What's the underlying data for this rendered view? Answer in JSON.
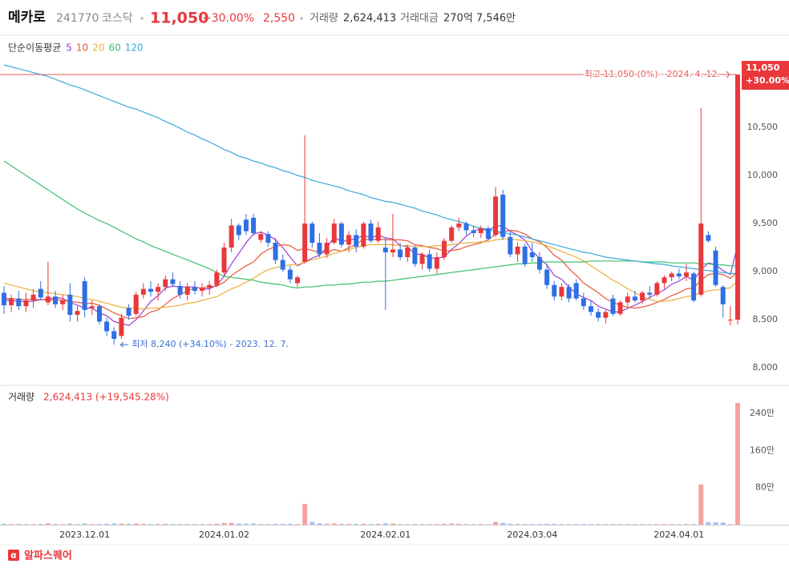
{
  "header": {
    "name": "메카로",
    "code": "241770",
    "market": "코스닥",
    "price": "11,050",
    "change_pct": "+30.00%",
    "change": "2,550",
    "volume_label": "거래량",
    "volume": "2,624,413",
    "amount_label": "거래대금",
    "amount": "270억 7,546만"
  },
  "chart_data": {
    "type": "candlestick",
    "categories": [
      null,
      null,
      null,
      null,
      null,
      null,
      null,
      null,
      null,
      null,
      null,
      "2023.12.01",
      null,
      null,
      null,
      null,
      null,
      null,
      null,
      null,
      null,
      null,
      null,
      null,
      null,
      null,
      null,
      null,
      null,
      null,
      "2024.01.02",
      null,
      null,
      null,
      null,
      null,
      null,
      null,
      null,
      null,
      null,
      null,
      null,
      null,
      null,
      null,
      null,
      null,
      null,
      null,
      null,
      null,
      "2024.02.01",
      null,
      null,
      null,
      null,
      null,
      null,
      null,
      null,
      null,
      null,
      null,
      null,
      null,
      null,
      null,
      null,
      null,
      null,
      null,
      "2024.03.04",
      null,
      null,
      null,
      null,
      null,
      null,
      null,
      null,
      null,
      null,
      null,
      null,
      null,
      null,
      null,
      null,
      null,
      null,
      null,
      "2024.04.01",
      null,
      null,
      null,
      null,
      null,
      null,
      null,
      null
    ],
    "open": [
      8780,
      8650,
      8720,
      8640,
      8700,
      8820,
      8680,
      8740,
      8660,
      8760,
      8550,
      8900,
      8620,
      8640,
      8480,
      8380,
      8330,
      8620,
      8560,
      8760,
      8820,
      8790,
      8840,
      8920,
      8850,
      8760,
      8840,
      8800,
      8830,
      8860,
      8990,
      9250,
      9480,
      9540,
      9560,
      9330,
      9390,
      9300,
      9120,
      9020,
      8880,
      9100,
      9500,
      9300,
      9180,
      9300,
      9500,
      9280,
      9380,
      9260,
      9500,
      9320,
      9250,
      9200,
      9230,
      9150,
      9250,
      9080,
      9180,
      9030,
      9150,
      9320,
      9460,
      9500,
      9430,
      9400,
      9450,
      9380,
      9800,
      9360,
      9180,
      9260,
      9200,
      9150,
      9020,
      8860,
      8740,
      8840,
      8880,
      8720,
      8640,
      8580,
      8520,
      8720,
      8560,
      8680,
      8740,
      8700,
      8780,
      8760,
      8880,
      8940,
      8980,
      8950,
      8980,
      8760,
      9380,
      9220,
      8840,
      8500,
      8500
    ],
    "high": [
      8850,
      8760,
      8800,
      8780,
      8820,
      8900,
      9100,
      8800,
      8760,
      8880,
      8640,
      8940,
      8700,
      8660,
      8520,
      8420,
      8560,
      8660,
      8790,
      8880,
      8900,
      8880,
      8960,
      8990,
      8900,
      8880,
      8900,
      8880,
      8900,
      9020,
      9300,
      9550,
      9500,
      9600,
      9600,
      9420,
      9420,
      9350,
      9180,
      9060,
      8960,
      10420,
      9520,
      9400,
      9350,
      9550,
      9520,
      9420,
      9440,
      9520,
      9540,
      9520,
      9350,
      9600,
      9300,
      9280,
      9270,
      9200,
      9230,
      9200,
      9350,
      9480,
      9560,
      9520,
      9480,
      9480,
      9470,
      9880,
      9850,
      9420,
      9300,
      9290,
      9300,
      9200,
      9080,
      8900,
      8880,
      8870,
      8920,
      8780,
      8700,
      8620,
      8600,
      8760,
      8700,
      8780,
      8800,
      8800,
      8850,
      8900,
      8960,
      9000,
      9030,
      9080,
      9000,
      10700,
      9420,
      9260,
      8860,
      8640,
      11050
    ],
    "low": [
      8560,
      8580,
      8600,
      8580,
      8620,
      8700,
      8650,
      8620,
      8600,
      8480,
      8480,
      8520,
      8550,
      8450,
      8330,
      8240,
      8300,
      8500,
      8540,
      8720,
      8740,
      8700,
      8800,
      8840,
      8720,
      8700,
      8760,
      8740,
      8760,
      8840,
      8960,
      9200,
      9330,
      9380,
      9380,
      9300,
      9260,
      9080,
      9000,
      8880,
      8840,
      9080,
      9250,
      9150,
      9140,
      9280,
      9250,
      9200,
      9200,
      9240,
      9300,
      9300,
      8600,
      9150,
      9120,
      9100,
      9050,
      9020,
      9000,
      8980,
      9120,
      9300,
      9420,
      9380,
      9360,
      9350,
      9320,
      9360,
      9330,
      9150,
      9100,
      9050,
      9100,
      8980,
      8820,
      8700,
      8700,
      8680,
      8700,
      8600,
      8540,
      8480,
      8460,
      8540,
      8540,
      8640,
      8680,
      8660,
      8720,
      8740,
      8820,
      8900,
      8920,
      8900,
      8680,
      8740,
      9300,
      8840,
      8520,
      8440,
      8450
    ],
    "close": [
      8650,
      8720,
      8640,
      8700,
      8760,
      8730,
      8740,
      8660,
      8700,
      8550,
      8590,
      8600,
      8640,
      8480,
      8380,
      8300,
      8520,
      8540,
      8760,
      8820,
      8790,
      8840,
      8920,
      8870,
      8760,
      8840,
      8800,
      8830,
      8860,
      8990,
      9250,
      9480,
      9380,
      9420,
      9400,
      9390,
      9300,
      9120,
      9020,
      8920,
      8940,
      9500,
      9300,
      9180,
      9300,
      9500,
      9280,
      9380,
      9260,
      9500,
      9320,
      9460,
      9200,
      9230,
      9150,
      9250,
      9080,
      9180,
      9030,
      9150,
      9320,
      9460,
      9500,
      9430,
      9400,
      9450,
      9340,
      9780,
      9360,
      9180,
      9260,
      9080,
      9150,
      9020,
      8860,
      8740,
      8840,
      8720,
      8720,
      8640,
      8580,
      8520,
      8580,
      8560,
      8680,
      8740,
      8700,
      8780,
      8760,
      8880,
      8940,
      8980,
      8950,
      8990,
      8700,
      9500,
      9320,
      8860,
      8660,
      8500,
      11050
    ],
    "up_color": "#e8383b",
    "down_color": "#2f6fe4",
    "ylim": [
      7825,
      11225
    ],
    "yticks": [
      {
        "value": 8000,
        "label": "8,000"
      },
      {
        "value": 8500,
        "label": "8,500"
      },
      {
        "value": 9000,
        "label": "9,000"
      },
      {
        "value": 9500,
        "label": "9,500"
      },
      {
        "value": 10000,
        "label": "10,000"
      },
      {
        "value": 10500,
        "label": "10,500"
      }
    ],
    "grid": false,
    "last_price": {
      "value": 11050,
      "label": "11,050",
      "change": "+30.00%"
    },
    "high_note": {
      "value": 11050,
      "label": "최고 11,050 (0%) - 2024. 4. 12."
    },
    "low_note": {
      "value": 8240,
      "label": "최저 8,240 (+34.10%) - 2023. 12. 7."
    },
    "ma_title": "단순이동평균",
    "moving_averages": [
      {
        "name": "5",
        "color": "#9b3ccf",
        "values": [
          8700,
          8700,
          8690,
          8690,
          8690,
          8710,
          8710,
          8730,
          8720,
          8680,
          8650,
          8620,
          8620,
          8570,
          8540,
          8480,
          8460,
          8440,
          8500,
          8590,
          8690,
          8750,
          8830,
          8850,
          8840,
          8840,
          8840,
          8820,
          8820,
          8860,
          8950,
          9080,
          9190,
          9300,
          9390,
          9410,
          9380,
          9330,
          9250,
          9150,
          9060,
          9100,
          9140,
          9170,
          9250,
          9360,
          9310,
          9330,
          9340,
          9380,
          9350,
          9380,
          9350,
          9340,
          9270,
          9260,
          9180,
          9180,
          9140,
          9140,
          9150,
          9230,
          9290,
          9370,
          9420,
          9450,
          9420,
          9480,
          9470,
          9420,
          9380,
          9330,
          9210,
          9140,
          9070,
          8960,
          8920,
          8840,
          8770,
          8730,
          8700,
          8640,
          8610,
          8580,
          8580,
          8620,
          8650,
          8690,
          8730,
          8770,
          8810,
          8870,
          8900,
          8950,
          8910,
          9020,
          9090,
          9070,
          9010,
          8970,
          9280
        ]
      },
      {
        "name": "10",
        "color": "#e8573a",
        "values": [
          8720,
          8720,
          8710,
          8710,
          8710,
          8710,
          8700,
          8710,
          8700,
          8690,
          8680,
          8670,
          8670,
          8650,
          8610,
          8570,
          8540,
          8510,
          8520,
          8530,
          8580,
          8600,
          8660,
          8720,
          8760,
          8800,
          8830,
          8830,
          8840,
          8850,
          8890,
          8960,
          9010,
          9060,
          9100,
          9180,
          9230,
          9260,
          9280,
          9270,
          9220,
          9240,
          9220,
          9200,
          9200,
          9230,
          9210,
          9250,
          9280,
          9340,
          9330,
          9340,
          9330,
          9330,
          9330,
          9320,
          9280,
          9270,
          9250,
          9240,
          9210,
          9220,
          9230,
          9260,
          9280,
          9300,
          9330,
          9390,
          9410,
          9430,
          9420,
          9390,
          9340,
          9310,
          9250,
          9170,
          9120,
          9030,
          8960,
          8880,
          8830,
          8780,
          8720,
          8680,
          8650,
          8630,
          8620,
          8630,
          8650,
          8680,
          8710,
          8750,
          8780,
          8820,
          8830,
          8910,
          8970,
          8980,
          8970,
          8930,
          9000
        ]
      },
      {
        "name": "20",
        "color": "#e8b13a",
        "values": [
          8880,
          8860,
          8840,
          8820,
          8800,
          8790,
          8780,
          8770,
          8760,
          8750,
          8740,
          8720,
          8710,
          8690,
          8670,
          8650,
          8630,
          8620,
          8620,
          8610,
          8620,
          8620,
          8630,
          8640,
          8650,
          8670,
          8680,
          8700,
          8720,
          8740,
          8780,
          8820,
          8850,
          8890,
          8930,
          8980,
          9020,
          9040,
          9060,
          9070,
          9070,
          9100,
          9120,
          9140,
          9160,
          9190,
          9210,
          9230,
          9250,
          9270,
          9280,
          9280,
          9280,
          9280,
          9270,
          9270,
          9260,
          9260,
          9260,
          9270,
          9270,
          9280,
          9290,
          9300,
          9300,
          9310,
          9310,
          9330,
          9340,
          9340,
          9330,
          9320,
          9310,
          9290,
          9270,
          9240,
          9210,
          9180,
          9150,
          9110,
          9060,
          9010,
          8960,
          8910,
          8870,
          8820,
          8780,
          8740,
          8710,
          8690,
          8690,
          8700,
          8720,
          8740,
          8750,
          8780,
          8800,
          8810,
          8820,
          8830,
          8910
        ]
      },
      {
        "name": "60",
        "color": "#3cbf6e",
        "values": [
          10150,
          10100,
          10050,
          10000,
          9950,
          9900,
          9850,
          9800,
          9750,
          9700,
          9650,
          9610,
          9570,
          9530,
          9500,
          9460,
          9420,
          9380,
          9340,
          9310,
          9270,
          9240,
          9210,
          9180,
          9150,
          9120,
          9090,
          9060,
          9030,
          8990,
          8950,
          8940,
          8930,
          8920,
          8910,
          8890,
          8880,
          8870,
          8860,
          8840,
          8830,
          8840,
          8840,
          8850,
          8860,
          8860,
          8870,
          8870,
          8880,
          8890,
          8890,
          8900,
          8900,
          8910,
          8920,
          8930,
          8940,
          8950,
          8960,
          8970,
          8980,
          8990,
          9000,
          9010,
          9020,
          9030,
          9040,
          9050,
          9060,
          9070,
          9080,
          9080,
          9090,
          9090,
          9100,
          9100,
          9100,
          9100,
          9100,
          9100,
          9110,
          9110,
          9110,
          9110,
          9110,
          9110,
          9110,
          9100,
          9100,
          9100,
          9100,
          9090,
          9090,
          9090,
          9090,
          9080,
          9080,
          9070,
          9070,
          9060,
          9060
        ]
      },
      {
        "name": "120",
        "color": "#3aa8d8",
        "values": [
          11150,
          11130,
          11110,
          11090,
          11070,
          11050,
          11030,
          11000,
          10970,
          10940,
          10920,
          10890,
          10860,
          10830,
          10800,
          10770,
          10740,
          10710,
          10690,
          10660,
          10630,
          10600,
          10560,
          10530,
          10490,
          10450,
          10420,
          10380,
          10350,
          10310,
          10270,
          10240,
          10200,
          10180,
          10150,
          10130,
          10100,
          10080,
          10050,
          10030,
          10000,
          9980,
          9950,
          9930,
          9910,
          9890,
          9870,
          9840,
          9820,
          9800,
          9770,
          9750,
          9730,
          9720,
          9700,
          9680,
          9660,
          9630,
          9610,
          9590,
          9560,
          9540,
          9520,
          9500,
          9470,
          9450,
          9440,
          9420,
          9410,
          9390,
          9380,
          9360,
          9340,
          9320,
          9300,
          9280,
          9260,
          9240,
          9220,
          9200,
          9190,
          9170,
          9150,
          9140,
          9130,
          9120,
          9110,
          9100,
          9090,
          9080,
          9075,
          9060,
          9050,
          9040,
          9030,
          9020,
          9010,
          9000,
          8990,
          8980,
          8980
        ]
      }
    ],
    "volume_series": {
      "name": "거래량",
      "axis": "y2",
      "label": "2,624,413 (+19,545.28%)",
      "up_color": "#f4a3a3",
      "down_color": "#a9c0f0",
      "values": [
        21000,
        15000,
        18000,
        12000,
        14000,
        16000,
        30000,
        14000,
        12000,
        25000,
        11000,
        26000,
        13000,
        17000,
        22000,
        28000,
        24000,
        20000,
        26000,
        18000,
        14000,
        15000,
        19000,
        13000,
        15000,
        14000,
        12000,
        13000,
        15000,
        22000,
        38000,
        42000,
        26000,
        24000,
        27000,
        16000,
        14000,
        19000,
        17000,
        20000,
        14000,
        450000,
        60000,
        30000,
        22000,
        28000,
        20000,
        18000,
        17000,
        21000,
        16000,
        19000,
        30000,
        26000,
        14000,
        13000,
        15000,
        12000,
        13000,
        12000,
        20000,
        24000,
        22000,
        14000,
        12000,
        13000,
        11000,
        60000,
        40000,
        22000,
        15000,
        16000,
        14000,
        15000,
        20000,
        18000,
        12000,
        13000,
        14000,
        16000,
        15000,
        14000,
        12000,
        16000,
        13000,
        12000,
        11000,
        12000,
        11000,
        14000,
        16000,
        13000,
        12000,
        15000,
        14000,
        870000,
        60000,
        55000,
        48000,
        13360,
        2624413
      ]
    },
    "y2lim": [
      0,
      2987000
    ],
    "y2ticks": [
      {
        "value": 800000,
        "label": "80만"
      },
      {
        "value": 1600000,
        "label": "160만"
      },
      {
        "value": 2400000,
        "label": "240만"
      }
    ]
  },
  "footer": {
    "logo": "α",
    "brand": "알파스퀘어"
  }
}
